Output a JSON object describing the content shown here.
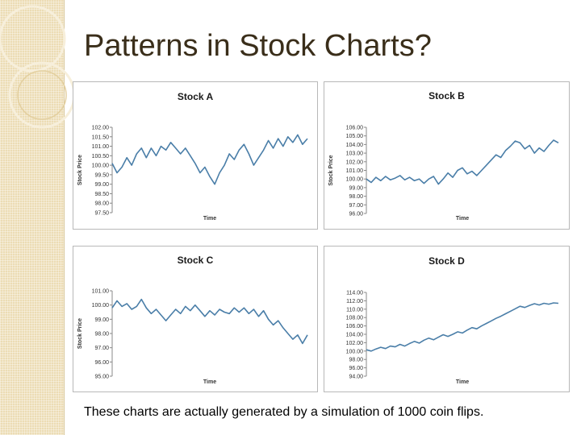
{
  "slide": {
    "title": "Patterns in Stock Charts?",
    "caption": "These charts are actually generated by a simulation of 1000 coin flips."
  },
  "colors": {
    "line": "#4a7ea8",
    "stripe": "#ecdcb4",
    "title": "#3a2e1a"
  },
  "chart_data": [
    {
      "type": "line",
      "title": "Stock A",
      "xlabel": "Time",
      "ylabel": "Stock Price",
      "ylim": [
        97.5,
        102.0
      ],
      "yticks": [
        "102.00",
        "101.50",
        "101.00",
        "100.50",
        "100.00",
        "99.50",
        "99.00",
        "98.50",
        "98.00",
        "97.50"
      ],
      "x": [
        0,
        25,
        50,
        75,
        100,
        125,
        150,
        175,
        200,
        225,
        250,
        275,
        300,
        325,
        350,
        375,
        400,
        425,
        450,
        475,
        500,
        525,
        550,
        575,
        600,
        625,
        650,
        675,
        700,
        725,
        750,
        775,
        800,
        825,
        850,
        875,
        900,
        925,
        950,
        975,
        1000
      ],
      "values": [
        100.1,
        99.6,
        99.9,
        100.4,
        100.0,
        100.6,
        100.9,
        100.4,
        100.9,
        100.5,
        101.0,
        100.8,
        101.2,
        100.9,
        100.6,
        100.9,
        100.5,
        100.1,
        99.6,
        99.9,
        99.4,
        99.0,
        99.6,
        100.0,
        100.6,
        100.3,
        100.8,
        101.1,
        100.6,
        100.0,
        100.4,
        100.8,
        101.3,
        100.9,
        101.4,
        101.0,
        101.5,
        101.2,
        101.6,
        101.1,
        101.4
      ]
    },
    {
      "type": "line",
      "title": "Stock B",
      "xlabel": "Time",
      "ylabel": "Stock Price",
      "ylim": [
        96.0,
        106.0
      ],
      "yticks": [
        "106.00",
        "105.00",
        "104.00",
        "103.00",
        "102.00",
        "101.00",
        "100.00",
        "99.00",
        "98.00",
        "97.00",
        "96.00"
      ],
      "x": [
        0,
        25,
        50,
        75,
        100,
        125,
        150,
        175,
        200,
        225,
        250,
        275,
        300,
        325,
        350,
        375,
        400,
        425,
        450,
        475,
        500,
        525,
        550,
        575,
        600,
        625,
        650,
        675,
        700,
        725,
        750,
        775,
        800,
        825,
        850,
        875,
        900,
        925,
        950,
        975,
        1000
      ],
      "values": [
        100.0,
        99.6,
        100.2,
        99.8,
        100.3,
        99.9,
        100.1,
        100.4,
        99.9,
        100.2,
        99.8,
        100.0,
        99.5,
        100.0,
        100.3,
        99.4,
        100.0,
        100.7,
        100.2,
        101.0,
        101.3,
        100.6,
        100.9,
        100.4,
        101.0,
        101.6,
        102.2,
        102.8,
        102.5,
        103.3,
        103.8,
        104.4,
        104.2,
        103.5,
        103.9,
        103.0,
        103.6,
        103.2,
        103.9,
        104.5,
        104.2
      ]
    },
    {
      "type": "line",
      "title": "Stock C",
      "xlabel": "Time",
      "ylabel": "Stock Price",
      "ylim": [
        95.0,
        101.0
      ],
      "yticks": [
        "101.00",
        "100.00",
        "99.00",
        "98.00",
        "97.00",
        "96.00",
        "95.00"
      ],
      "x": [
        0,
        25,
        50,
        75,
        100,
        125,
        150,
        175,
        200,
        225,
        250,
        275,
        300,
        325,
        350,
        375,
        400,
        425,
        450,
        475,
        500,
        525,
        550,
        575,
        600,
        625,
        650,
        675,
        700,
        725,
        750,
        775,
        800,
        825,
        850,
        875,
        900,
        925,
        950,
        975,
        1000
      ],
      "values": [
        99.8,
        100.3,
        99.9,
        100.1,
        99.7,
        99.9,
        100.4,
        99.8,
        99.4,
        99.7,
        99.3,
        98.9,
        99.3,
        99.7,
        99.4,
        99.9,
        99.6,
        100.0,
        99.6,
        99.2,
        99.6,
        99.3,
        99.7,
        99.5,
        99.4,
        99.8,
        99.5,
        99.8,
        99.4,
        99.7,
        99.2,
        99.6,
        99.0,
        98.6,
        98.9,
        98.4,
        98.0,
        97.6,
        97.9,
        97.3,
        97.9
      ]
    },
    {
      "type": "line",
      "title": "Stock D",
      "xlabel": "Time",
      "ylabel": "",
      "ylim": [
        94.0,
        114.0
      ],
      "yticks": [
        "114.00",
        "112.00",
        "110.00",
        "108.00",
        "106.00",
        "104.00",
        "102.00",
        "100.00",
        "98.00",
        "96.00",
        "94.00"
      ],
      "x": [
        0,
        25,
        50,
        75,
        100,
        125,
        150,
        175,
        200,
        225,
        250,
        275,
        300,
        325,
        350,
        375,
        400,
        425,
        450,
        475,
        500,
        525,
        550,
        575,
        600,
        625,
        650,
        675,
        700,
        725,
        750,
        775,
        800,
        825,
        850,
        875,
        900,
        925,
        950,
        975,
        1000
      ],
      "values": [
        100.3,
        100.0,
        100.5,
        100.9,
        100.6,
        101.2,
        101.0,
        101.6,
        101.2,
        101.8,
        102.3,
        101.9,
        102.6,
        103.1,
        102.7,
        103.3,
        103.9,
        103.5,
        104.0,
        104.6,
        104.3,
        105.0,
        105.6,
        105.3,
        106.0,
        106.6,
        107.2,
        107.8,
        108.3,
        108.9,
        109.5,
        110.1,
        110.7,
        110.4,
        110.9,
        111.3,
        111.0,
        111.4,
        111.2,
        111.5,
        111.4
      ]
    }
  ]
}
